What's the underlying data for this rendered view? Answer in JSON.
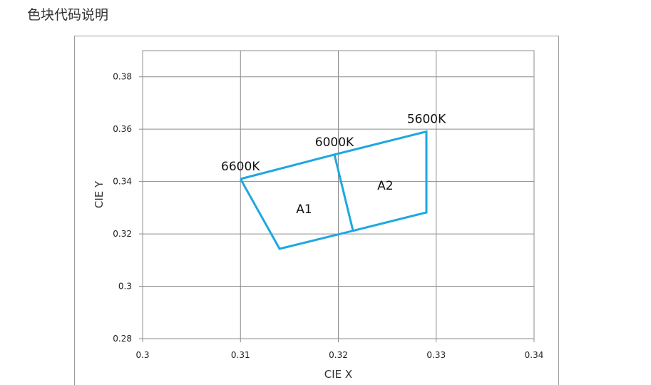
{
  "page": {
    "title": "色块代码说明"
  },
  "chart_data": {
    "type": "line",
    "title": "",
    "xlabel": "CIE X",
    "ylabel": "CIE Y",
    "xlim": [
      0.3,
      0.34
    ],
    "ylim": [
      0.28,
      0.39
    ],
    "x_ticks": [
      0.3,
      0.31,
      0.32,
      0.33,
      0.34
    ],
    "x_tick_labels": [
      "0.3",
      "0.31",
      "0.32",
      "0.33",
      "0.34"
    ],
    "y_ticks": [
      0.28,
      0.3,
      0.32,
      0.34,
      0.36,
      0.38
    ],
    "y_tick_labels": [
      "0.28",
      "0.3",
      "0.32",
      "0.34",
      "0.36",
      "0.38"
    ],
    "grid": true,
    "line_color": "#1ea7e1",
    "series": [
      {
        "name": "A1",
        "points": [
          [
            0.31,
            0.341
          ],
          [
            0.3196,
            0.3503
          ],
          [
            0.3215,
            0.3212
          ],
          [
            0.314,
            0.3143
          ],
          [
            0.31,
            0.341
          ]
        ]
      },
      {
        "name": "A2",
        "points": [
          [
            0.3196,
            0.3503
          ],
          [
            0.329,
            0.3591
          ],
          [
            0.329,
            0.3282
          ],
          [
            0.3215,
            0.3212
          ]
        ]
      }
    ],
    "region_labels": [
      {
        "text": "A1",
        "x": 0.3165,
        "y": 0.3295
      },
      {
        "text": "A2",
        "x": 0.3248,
        "y": 0.3385
      }
    ],
    "point_labels": [
      {
        "text": "6600K",
        "x": 0.31,
        "y": 0.341
      },
      {
        "text": "6000K",
        "x": 0.3196,
        "y": 0.3503
      },
      {
        "text": "5600K",
        "x": 0.329,
        "y": 0.3591
      }
    ]
  }
}
